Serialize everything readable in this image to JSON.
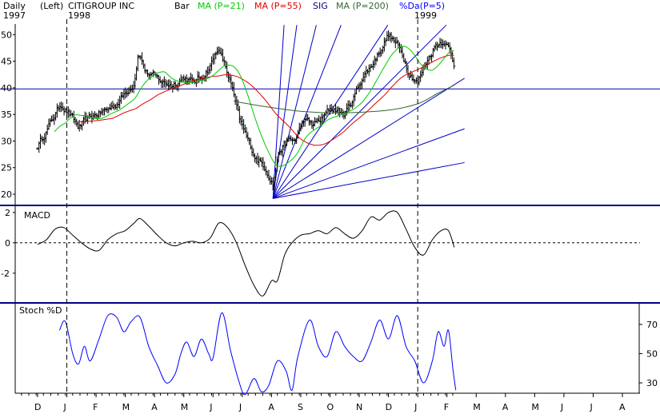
{
  "header": {
    "period": "Daily",
    "year_left": "1997",
    "scale": "(Left)",
    "title": "CITIGROUP INC",
    "year_mid": "1998",
    "bar_label": "Bar",
    "year_right": "1999"
  },
  "colors": {
    "price_bars": "#000000",
    "ma21": "#00cc00",
    "ma55": "#e00000",
    "ma200": "#336633",
    "sig": "#000080",
    "pctd": "#0000ff",
    "gann_fan": "#0000cc",
    "hline": "#0000aa",
    "divider": "#000080",
    "indicator": "#000000"
  },
  "chart_data": [
    {
      "type": "line",
      "panel": "price",
      "bar_type": "ohlc",
      "title": "CITIGROUP INC",
      "legend": [
        {
          "name": "MA (P=21)",
          "color": "#00cc00"
        },
        {
          "name": "MA (P=55)",
          "color": "#e00000"
        },
        {
          "name": "SIG",
          "color": "#000080"
        },
        {
          "name": "MA (P=200)",
          "color": "#336633"
        },
        {
          "name": "%Da(P=5)",
          "color": "#0000ff"
        }
      ],
      "x_axis": {
        "months": [
          "D",
          "J",
          "F",
          "M",
          "A",
          "M",
          "J",
          "J",
          "A",
          "S",
          "O",
          "N",
          "D",
          "J",
          "F",
          "M",
          "A",
          "M",
          "J",
          "J",
          "A"
        ],
        "years": [
          {
            "label": "1998",
            "month_index": 1
          },
          {
            "label": "1999",
            "month_index": 13
          }
        ]
      },
      "y_ticks": [
        20,
        25,
        30,
        35,
        40,
        45,
        50
      ],
      "ylim": [
        18.5,
        52
      ],
      "close_anchors": [
        [
          0,
          29
        ],
        [
          0.4,
          33
        ],
        [
          0.8,
          37
        ],
        [
          1.1,
          35
        ],
        [
          1.4,
          32.5
        ],
        [
          1.7,
          34
        ],
        [
          2.0,
          35
        ],
        [
          2.4,
          36
        ],
        [
          2.7,
          37
        ],
        [
          3.0,
          39
        ],
        [
          3.3,
          41
        ],
        [
          3.45,
          47
        ],
        [
          3.7,
          43
        ],
        [
          4.0,
          42
        ],
        [
          4.3,
          41
        ],
        [
          4.6,
          40.5
        ],
        [
          5.0,
          42
        ],
        [
          5.3,
          41
        ],
        [
          5.6,
          42
        ],
        [
          5.9,
          44
        ],
        [
          6.15,
          47.5
        ],
        [
          6.35,
          45
        ],
        [
          6.6,
          41
        ],
        [
          6.9,
          34
        ],
        [
          7.2,
          30
        ],
        [
          7.45,
          27
        ],
        [
          7.8,
          25
        ],
        [
          8.05,
          22
        ],
        [
          8.25,
          28
        ],
        [
          8.55,
          30
        ],
        [
          8.8,
          30
        ],
        [
          9.1,
          34
        ],
        [
          9.4,
          33
        ],
        [
          9.7,
          34
        ],
        [
          10.0,
          36
        ],
        [
          10.2,
          36
        ],
        [
          10.5,
          35
        ],
        [
          10.8,
          38
        ],
        [
          11.1,
          42
        ],
        [
          11.4,
          44
        ],
        [
          11.7,
          47
        ],
        [
          12.0,
          50
        ],
        [
          12.3,
          48
        ],
        [
          12.5,
          46
        ],
        [
          12.7,
          43
        ],
        [
          13.0,
          41
        ],
        [
          13.3,
          45
        ],
        [
          13.6,
          48
        ],
        [
          13.9,
          49
        ],
        [
          14.1,
          47
        ],
        [
          14.25,
          44
        ]
      ],
      "ma200_anchors": [
        [
          6.7,
          37.5
        ],
        [
          7.2,
          37
        ],
        [
          8.0,
          36.3
        ],
        [
          9.0,
          35.6
        ],
        [
          10.0,
          35.3
        ],
        [
          11.0,
          35.4
        ],
        [
          12.0,
          35.8
        ],
        [
          13.0,
          37
        ],
        [
          13.7,
          39
        ],
        [
          14.25,
          40.5
        ]
      ],
      "horizontal_line": 39.8,
      "gann_fan": {
        "origin": [
          8.05,
          19.2
        ],
        "slopes_per_month": [
          86,
          40,
          22,
          14,
          8.3,
          5.5,
          3.45,
          2.0,
          1.03
        ]
      }
    },
    {
      "type": "line",
      "panel": "macd",
      "title": "MACD",
      "y_ticks": [
        2,
        0,
        -2
      ],
      "ylim": [
        -3.8,
        2.2
      ],
      "zero_line": 0,
      "anchors": [
        [
          0,
          -0.1
        ],
        [
          0.3,
          0.2
        ],
        [
          0.6,
          0.9
        ],
        [
          0.9,
          1.0
        ],
        [
          1.2,
          0.5
        ],
        [
          1.5,
          0.0
        ],
        [
          1.8,
          -0.4
        ],
        [
          2.1,
          -0.5
        ],
        [
          2.4,
          0.2
        ],
        [
          2.7,
          0.6
        ],
        [
          3.0,
          0.8
        ],
        [
          3.3,
          1.3
        ],
        [
          3.5,
          1.6
        ],
        [
          3.8,
          1.1
        ],
        [
          4.1,
          0.5
        ],
        [
          4.4,
          0.0
        ],
        [
          4.7,
          -0.2
        ],
        [
          5.0,
          0.0
        ],
        [
          5.3,
          0.1
        ],
        [
          5.6,
          0.0
        ],
        [
          5.9,
          0.3
        ],
        [
          6.2,
          1.3
        ],
        [
          6.5,
          1.0
        ],
        [
          6.8,
          0.0
        ],
        [
          7.1,
          -1.5
        ],
        [
          7.4,
          -2.8
        ],
        [
          7.7,
          -3.5
        ],
        [
          8.0,
          -2.5
        ],
        [
          8.2,
          -2.5
        ],
        [
          8.45,
          -0.8
        ],
        [
          8.7,
          0.0
        ],
        [
          9.0,
          0.5
        ],
        [
          9.3,
          0.6
        ],
        [
          9.6,
          0.8
        ],
        [
          9.9,
          0.6
        ],
        [
          10.2,
          1.0
        ],
        [
          10.5,
          0.6
        ],
        [
          10.8,
          0.3
        ],
        [
          11.1,
          0.8
        ],
        [
          11.4,
          1.7
        ],
        [
          11.7,
          1.5
        ],
        [
          12.0,
          2.0
        ],
        [
          12.3,
          2.0
        ],
        [
          12.6,
          0.9
        ],
        [
          12.9,
          -0.3
        ],
        [
          13.2,
          -0.8
        ],
        [
          13.5,
          0.2
        ],
        [
          13.8,
          0.8
        ],
        [
          14.05,
          0.8
        ],
        [
          14.25,
          -0.3
        ]
      ]
    },
    {
      "type": "line",
      "panel": "stochastic",
      "title": "Stoch %D",
      "y_ticks": [
        70,
        50,
        30
      ],
      "ylim": [
        24,
        82
      ],
      "anchors": [
        [
          0.75,
          66
        ],
        [
          0.95,
          72
        ],
        [
          1.2,
          50
        ],
        [
          1.4,
          43
        ],
        [
          1.6,
          55
        ],
        [
          1.8,
          45
        ],
        [
          2.1,
          60
        ],
        [
          2.4,
          76
        ],
        [
          2.7,
          75
        ],
        [
          2.95,
          65
        ],
        [
          3.2,
          72
        ],
        [
          3.5,
          75
        ],
        [
          3.8,
          55
        ],
        [
          4.1,
          42
        ],
        [
          4.4,
          30
        ],
        [
          4.7,
          36
        ],
        [
          4.9,
          50
        ],
        [
          5.1,
          58
        ],
        [
          5.35,
          48
        ],
        [
          5.6,
          60
        ],
        [
          5.85,
          50
        ],
        [
          6.0,
          47
        ],
        [
          6.3,
          78
        ],
        [
          6.6,
          52
        ],
        [
          6.9,
          30
        ],
        [
          7.1,
          22
        ],
        [
          7.4,
          33
        ],
        [
          7.65,
          24
        ],
        [
          7.9,
          28
        ],
        [
          8.2,
          45
        ],
        [
          8.5,
          38
        ],
        [
          8.7,
          25
        ],
        [
          8.9,
          48
        ],
        [
          9.3,
          73
        ],
        [
          9.6,
          55
        ],
        [
          9.9,
          48
        ],
        [
          10.2,
          65
        ],
        [
          10.5,
          55
        ],
        [
          10.8,
          48
        ],
        [
          11.1,
          45
        ],
        [
          11.4,
          58
        ],
        [
          11.7,
          73
        ],
        [
          12.0,
          60
        ],
        [
          12.3,
          76
        ],
        [
          12.6,
          55
        ],
        [
          12.9,
          45
        ],
        [
          13.2,
          30
        ],
        [
          13.5,
          45
        ],
        [
          13.7,
          65
        ],
        [
          13.9,
          55
        ],
        [
          14.05,
          66
        ],
        [
          14.2,
          40
        ],
        [
          14.3,
          25
        ]
      ]
    }
  ]
}
